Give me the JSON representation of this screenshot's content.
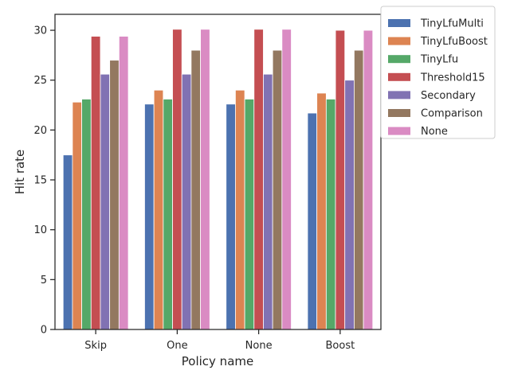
{
  "chart_data": {
    "type": "bar",
    "xlabel": "Policy name",
    "ylabel": "Hit rate",
    "ylim": [
      0,
      31.6
    ],
    "yticks": [
      "0",
      "5",
      "10",
      "15",
      "20",
      "25",
      "30"
    ],
    "categories": [
      "Skip",
      "One",
      "None",
      "Boost"
    ],
    "grid": false,
    "legend_position": "outside top-right",
    "series": [
      {
        "name": "TinyLfuMulti",
        "color": "#4c72b0",
        "values": [
          17.5,
          22.6,
          22.6,
          21.7
        ]
      },
      {
        "name": "TinyLfuBoost",
        "color": "#dd8452",
        "values": [
          22.8,
          24.0,
          24.0,
          23.7
        ]
      },
      {
        "name": "TinyLfu",
        "color": "#55a868",
        "values": [
          23.1,
          23.1,
          23.1,
          23.1
        ]
      },
      {
        "name": "Threshold15",
        "color": "#c44e52",
        "values": [
          29.4,
          30.1,
          30.1,
          30.0
        ]
      },
      {
        "name": "Secondary",
        "color": "#8172b3",
        "values": [
          25.6,
          25.6,
          25.6,
          25.0
        ]
      },
      {
        "name": "Comparison",
        "color": "#937860",
        "values": [
          27.0,
          28.0,
          28.0,
          28.0
        ]
      },
      {
        "name": "None",
        "color": "#da8bc3",
        "values": [
          29.4,
          30.1,
          30.1,
          30.0
        ]
      }
    ]
  }
}
